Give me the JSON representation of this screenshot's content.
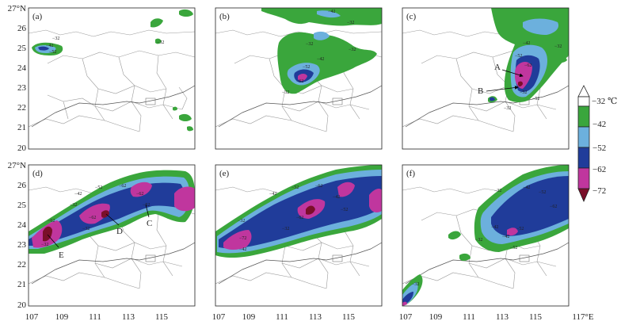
{
  "figure": {
    "lat_labels": [
      "27°N",
      "26",
      "25",
      "24",
      "23",
      "22",
      "21",
      "20"
    ],
    "lon_labels": [
      "107",
      "109",
      "111",
      "113",
      "115",
      "117°E"
    ],
    "colorbar": {
      "ticks": [
        "−32 ℃",
        "−42",
        "−52",
        "−62",
        "−72"
      ],
      "colors": [
        "#ffffff",
        "#3aa63c",
        "#6cb0dd",
        "#203c9a",
        "#c0369e",
        "#7a0f29"
      ]
    },
    "panels": [
      {
        "id": "a",
        "label": "(a)",
        "contour_labels": [
          "−32",
          "−42",
          "−52",
          "−32"
        ],
        "callouts": []
      },
      {
        "id": "b",
        "label": "(b)",
        "contour_labels": [
          "−42",
          "−32",
          "−32",
          "−32",
          "−52",
          "−42",
          "−62",
          "−32"
        ],
        "callouts": []
      },
      {
        "id": "c",
        "label": "(c)",
        "contour_labels": [
          "−32",
          "−42",
          "−52",
          "−62",
          "−52",
          "−32",
          "−52"
        ],
        "callouts": [
          "A",
          "B"
        ]
      },
      {
        "id": "d",
        "label": "(d)",
        "contour_labels": [
          "−42",
          "−52",
          "−62",
          "−62",
          "−62",
          "−62",
          "−52",
          "−32",
          "−32",
          "−32"
        ],
        "callouts": [
          "D",
          "C",
          "E"
        ]
      },
      {
        "id": "e",
        "label": "(e)",
        "contour_labels": [
          "−42",
          "−52",
          "−62",
          "−42",
          "−52",
          "−62",
          "−72",
          "−32",
          "−32",
          "−42"
        ],
        "callouts": []
      },
      {
        "id": "f",
        "label": "(f)",
        "contour_labels": [
          "−32",
          "−42",
          "−52",
          "−62",
          "−42",
          "−32",
          "−42",
          "−52",
          "−52",
          "−32"
        ],
        "callouts": []
      }
    ]
  }
}
